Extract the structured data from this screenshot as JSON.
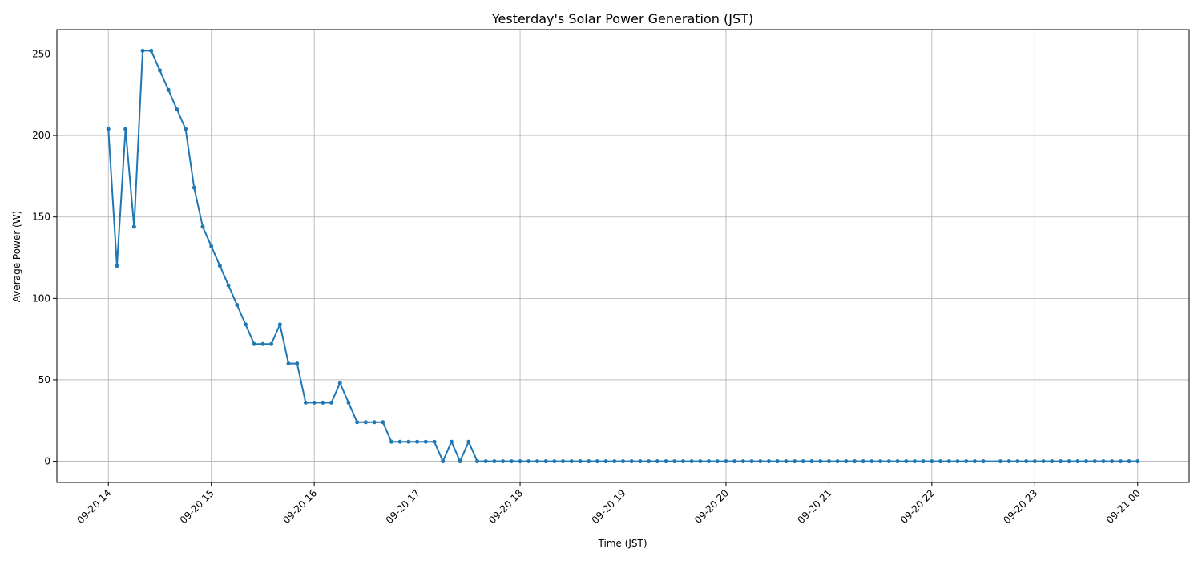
{
  "chart_data": {
    "type": "line",
    "title": "Yesterday's Solar Power Generation (JST)",
    "xlabel": "Time (JST)",
    "ylabel": "Average Power (W)",
    "grid": true,
    "x_interval_minutes": 5,
    "x_start": "09-20 14:00",
    "x_end": "09-21 00:00",
    "x_tick_labels": [
      "09-20 14",
      "09-20 15",
      "09-20 16",
      "09-20 17",
      "09-20 18",
      "09-20 19",
      "09-20 20",
      "09-20 21",
      "09-20 22",
      "09-20 23",
      "09-21 00"
    ],
    "y_ticks": [
      0,
      50,
      100,
      150,
      200,
      250
    ],
    "ylim": [
      -13,
      265
    ],
    "series": [
      {
        "color": "#1f77b4",
        "x": [
          "09-20 14:00",
          "09-20 14:05",
          "09-20 14:10",
          "09-20 14:15",
          "09-20 14:20",
          "09-20 14:25",
          "09-20 14:30",
          "09-20 14:35",
          "09-20 14:40",
          "09-20 14:45",
          "09-20 14:50",
          "09-20 14:55",
          "09-20 15:00",
          "09-20 15:05",
          "09-20 15:10",
          "09-20 15:15",
          "09-20 15:20",
          "09-20 15:25",
          "09-20 15:30",
          "09-20 15:35",
          "09-20 15:40",
          "09-20 15:45",
          "09-20 15:50",
          "09-20 15:55",
          "09-20 16:00",
          "09-20 16:05",
          "09-20 16:10",
          "09-20 16:15",
          "09-20 16:20",
          "09-20 16:25",
          "09-20 16:30",
          "09-20 16:35",
          "09-20 16:40",
          "09-20 16:45",
          "09-20 16:50",
          "09-20 16:55",
          "09-20 17:00",
          "09-20 17:05",
          "09-20 17:10",
          "09-20 17:15",
          "09-20 17:20",
          "09-20 17:25",
          "09-20 17:30",
          "09-20 17:35",
          "09-20 17:40",
          "09-20 17:45",
          "09-20 17:50",
          "09-20 17:55",
          "09-20 18:00",
          "09-20 18:05",
          "09-20 18:10",
          "09-20 18:15",
          "09-20 18:20",
          "09-20 18:25",
          "09-20 18:30",
          "09-20 18:35",
          "09-20 18:40",
          "09-20 18:45",
          "09-20 18:50",
          "09-20 18:55",
          "09-20 19:00",
          "09-20 19:05",
          "09-20 19:10",
          "09-20 19:15",
          "09-20 19:20",
          "09-20 19:25",
          "09-20 19:30",
          "09-20 19:35",
          "09-20 19:40",
          "09-20 19:45",
          "09-20 19:50",
          "09-20 19:55",
          "09-20 20:00",
          "09-20 20:05",
          "09-20 20:10",
          "09-20 20:15",
          "09-20 20:20",
          "09-20 20:25",
          "09-20 20:30",
          "09-20 20:35",
          "09-20 20:40",
          "09-20 20:45",
          "09-20 20:50",
          "09-20 20:55",
          "09-20 21:00",
          "09-20 21:05",
          "09-20 21:10",
          "09-20 21:15",
          "09-20 21:20",
          "09-20 21:25",
          "09-20 21:30",
          "09-20 21:35",
          "09-20 21:40",
          "09-20 21:45",
          "09-20 21:50",
          "09-20 21:55",
          "09-20 22:00",
          "09-20 22:05",
          "09-20 22:10",
          "09-20 22:15",
          "09-20 22:20",
          "09-20 22:25",
          "09-20 22:30",
          "09-20 22:40",
          "09-20 22:45",
          "09-20 22:50",
          "09-20 22:55",
          "09-20 23:00",
          "09-20 23:05",
          "09-20 23:10",
          "09-20 23:15",
          "09-20 23:20",
          "09-20 23:25",
          "09-20 23:30",
          "09-20 23:35",
          "09-20 23:40",
          "09-20 23:45",
          "09-20 23:50",
          "09-20 23:55",
          "09-21 00:00"
        ],
        "values": [
          204,
          120,
          204,
          144,
          252,
          252,
          240,
          228,
          216,
          204,
          168,
          144,
          132,
          120,
          108,
          96,
          84,
          72,
          72,
          72,
          84,
          60,
          60,
          36,
          36,
          36,
          36,
          48,
          36,
          24,
          24,
          24,
          24,
          12,
          12,
          12,
          12,
          12,
          12,
          0,
          12,
          0,
          12,
          0,
          0,
          0,
          0,
          0,
          0,
          0,
          0,
          0,
          0,
          0,
          0,
          0,
          0,
          0,
          0,
          0,
          0,
          0,
          0,
          0,
          0,
          0,
          0,
          0,
          0,
          0,
          0,
          0,
          0,
          0,
          0,
          0,
          0,
          0,
          0,
          0,
          0,
          0,
          0,
          0,
          0,
          0,
          0,
          0,
          0,
          0,
          0,
          0,
          0,
          0,
          0,
          0,
          0,
          0,
          0,
          0,
          0,
          0,
          0,
          0,
          0,
          0,
          0,
          0,
          0,
          0,
          0,
          0,
          0,
          0,
          0,
          0,
          0,
          0,
          0,
          0
        ]
      }
    ]
  }
}
